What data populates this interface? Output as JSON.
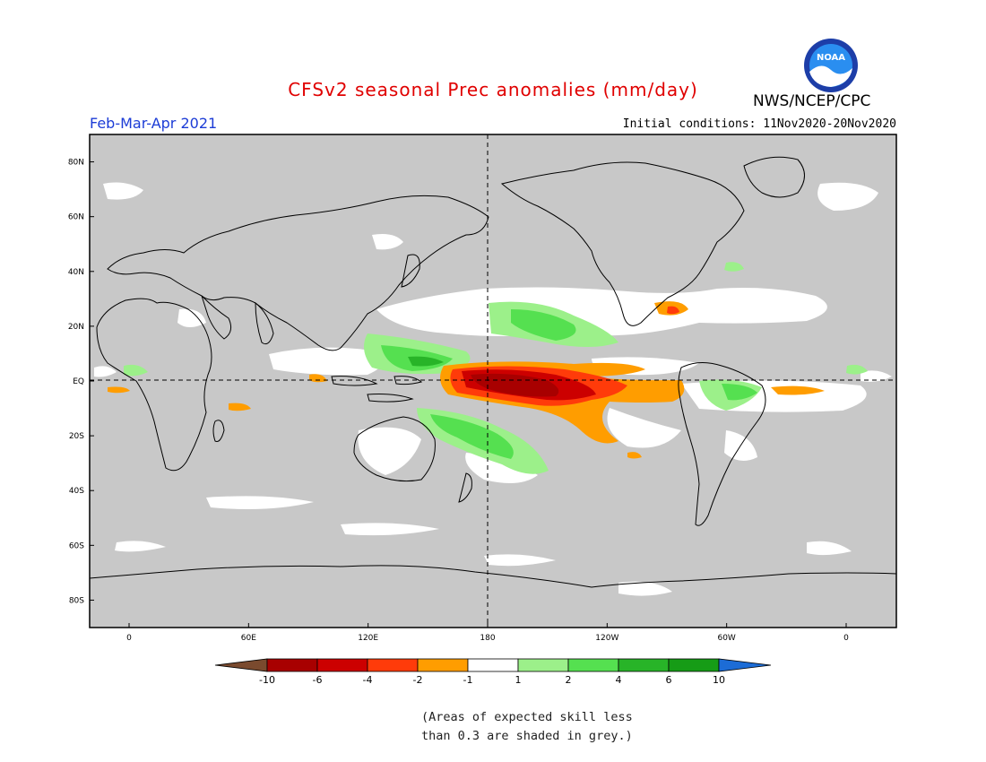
{
  "header": {
    "title": "CFSv2 seasonal Prec anomalies (mm/day)",
    "agency": "NWS/NCEP/CPC",
    "season": "Feb-Mar-Apr 2021",
    "initial_conditions": "Initial conditions: 11Nov2020-20Nov2020"
  },
  "logo": {
    "text": "NOAA",
    "icon": "noaa-logo"
  },
  "map": {
    "grey_color": "#c8c8c8",
    "lat_labels": [
      "80N",
      "60N",
      "40N",
      "20N",
      "EQ",
      "20S",
      "40S",
      "60S",
      "80S"
    ],
    "lon_labels": [
      "0",
      "60E",
      "120E",
      "180",
      "120W",
      "60W",
      "0"
    ]
  },
  "legend": {
    "colors": [
      "#7a4a2e",
      "#a80000",
      "#cc0000",
      "#ff3b0a",
      "#ff9d00",
      "#ffffff",
      "#9cf08a",
      "#55e050",
      "#28b428",
      "#169c16",
      "#1c6cd6"
    ],
    "tick_labels": [
      "-10",
      "-6",
      "-4",
      "-2",
      "-1",
      "1",
      "2",
      "4",
      "6",
      "10"
    ]
  },
  "note": {
    "line1": "(Areas of expected skill less",
    "line2": "than 0.3 are shaded in grey.)"
  }
}
